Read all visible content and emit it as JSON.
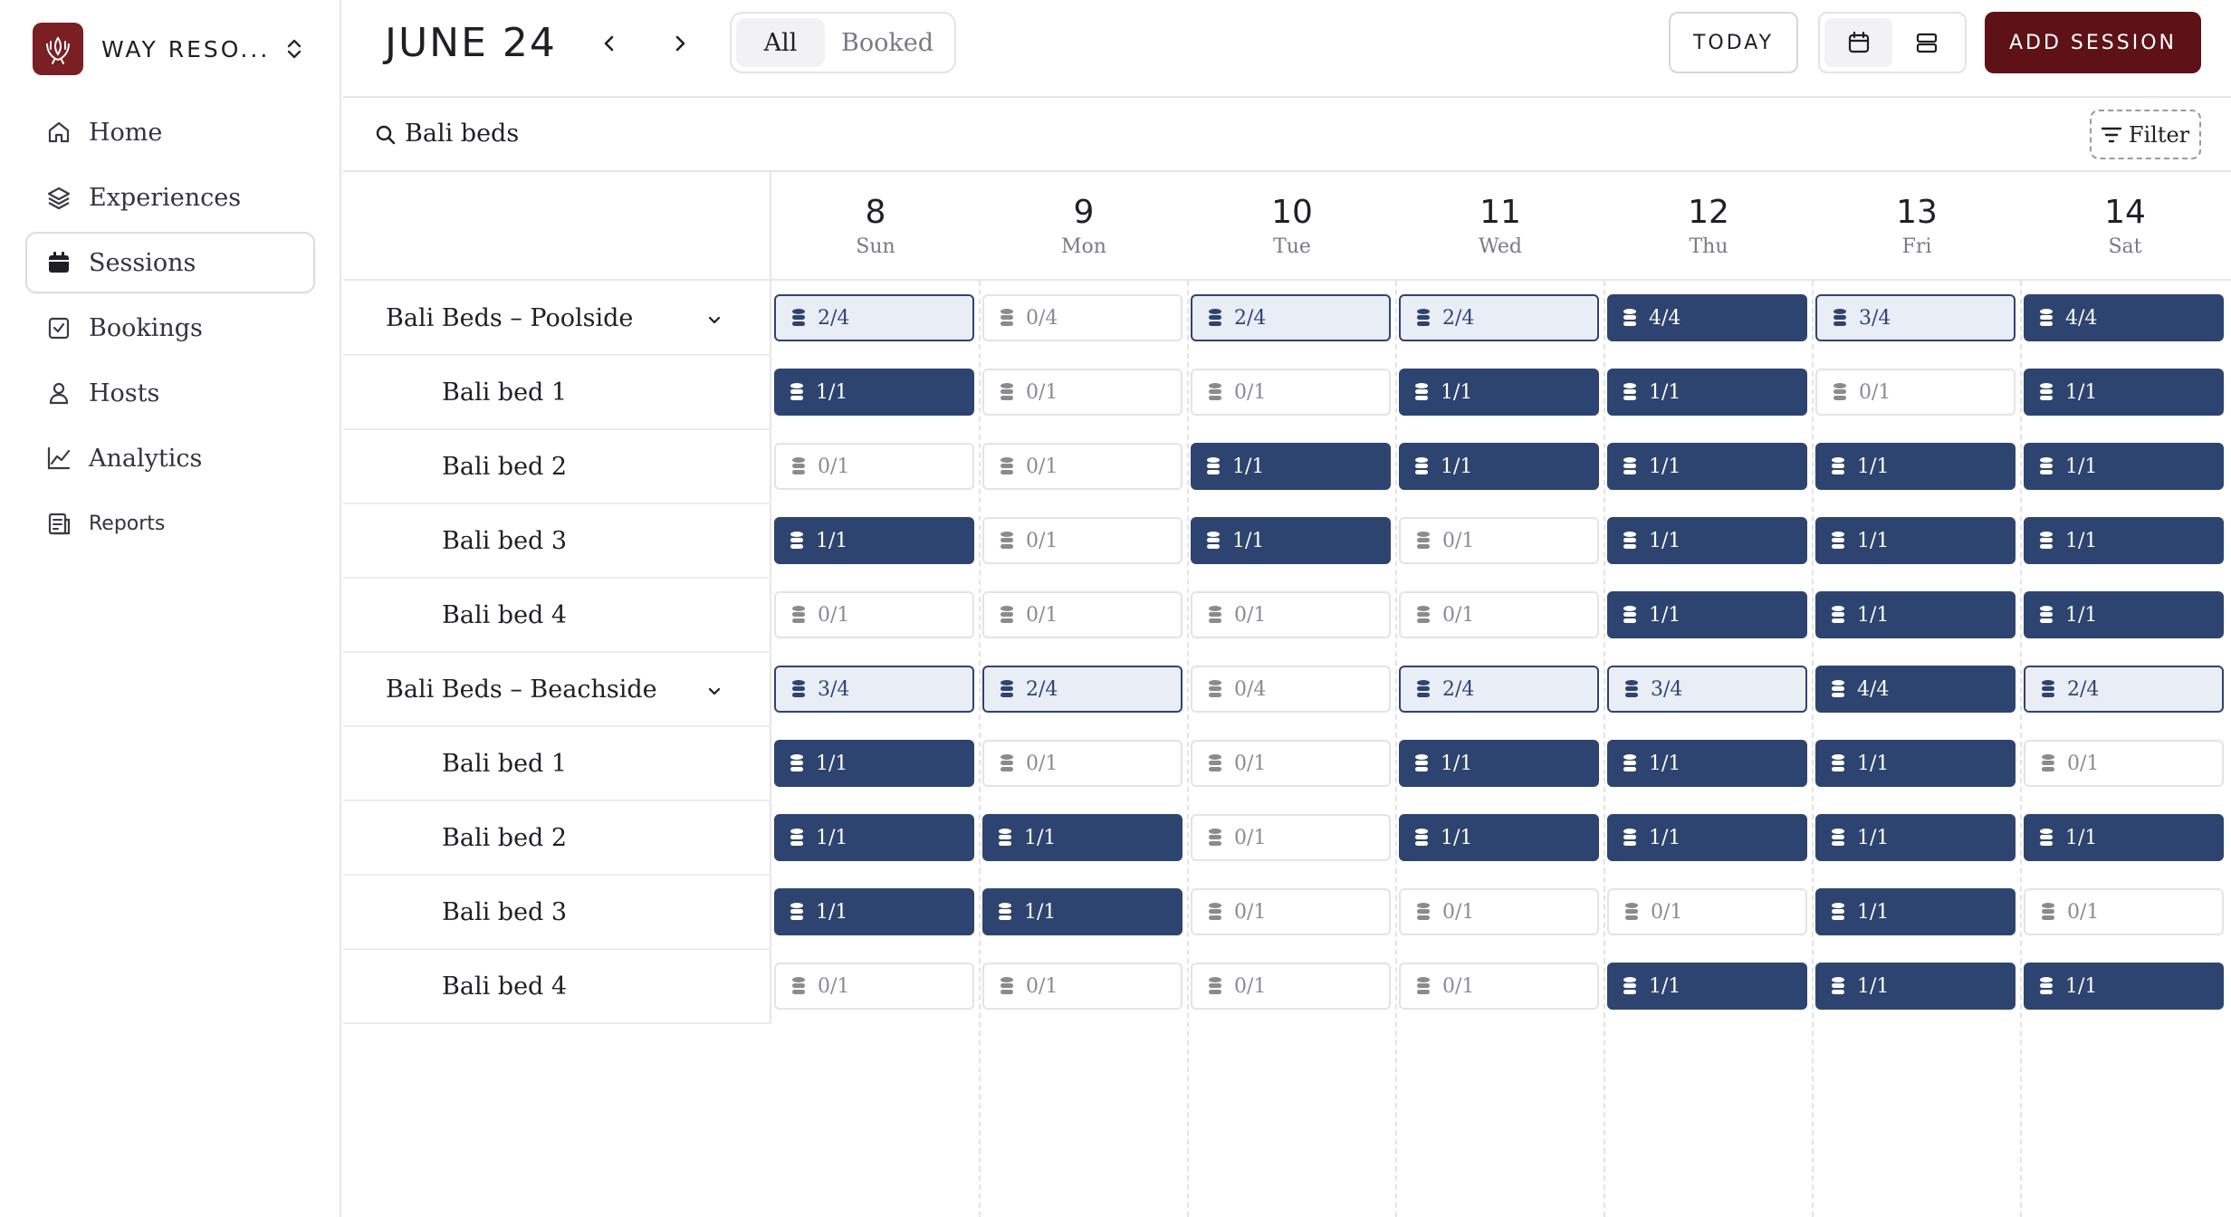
{
  "sidebar": {
    "brand_name": "WAY RESO...",
    "items": [
      {
        "label": "Home",
        "icon": "home-icon",
        "active": false
      },
      {
        "label": "Experiences",
        "icon": "layers-icon",
        "active": false
      },
      {
        "label": "Sessions",
        "icon": "calendar-icon",
        "active": true
      },
      {
        "label": "Bookings",
        "icon": "booking-icon",
        "active": false
      },
      {
        "label": "Hosts",
        "icon": "user-icon",
        "active": false
      },
      {
        "label": "Analytics",
        "icon": "chart-icon",
        "active": false
      },
      {
        "label": "Reports",
        "icon": "report-icon",
        "active": false
      }
    ]
  },
  "header": {
    "month": "JUNE 24",
    "filter_all": "All",
    "filter_booked": "Booked",
    "today": "TODAY",
    "add_session": "ADD SESSION"
  },
  "search": {
    "query": "Bali beds",
    "filter_label": "Filter"
  },
  "days": [
    {
      "num": "8",
      "name": "Sun"
    },
    {
      "num": "9",
      "name": "Mon"
    },
    {
      "num": "10",
      "name": "Tue"
    },
    {
      "num": "11",
      "name": "Wed"
    },
    {
      "num": "12",
      "name": "Thu"
    },
    {
      "num": "13",
      "name": "Fri"
    },
    {
      "num": "14",
      "name": "Sat"
    }
  ],
  "groups": [
    {
      "name": "Bali Beds – Poolside",
      "totals": [
        "2/4",
        "0/4",
        "2/4",
        "2/4",
        "4/4",
        "3/4",
        "4/4"
      ],
      "rows": [
        {
          "name": "Bali bed 1",
          "cells": [
            "1/1",
            "0/1",
            "0/1",
            "1/1",
            "1/1",
            "0/1",
            "1/1"
          ]
        },
        {
          "name": "Bali bed 2",
          "cells": [
            "0/1",
            "0/1",
            "1/1",
            "1/1",
            "1/1",
            "1/1",
            "1/1"
          ]
        },
        {
          "name": "Bali bed 3",
          "cells": [
            "1/1",
            "0/1",
            "1/1",
            "0/1",
            "1/1",
            "1/1",
            "1/1"
          ]
        },
        {
          "name": "Bali bed 4",
          "cells": [
            "0/1",
            "0/1",
            "0/1",
            "0/1",
            "1/1",
            "1/1",
            "1/1"
          ]
        }
      ]
    },
    {
      "name": "Bali Beds – Beachside",
      "totals": [
        "3/4",
        "2/4",
        "0/4",
        "2/4",
        "3/4",
        "4/4",
        "2/4"
      ],
      "rows": [
        {
          "name": "Bali bed 1",
          "cells": [
            "1/1",
            "0/1",
            "0/1",
            "1/1",
            "1/1",
            "1/1",
            "0/1"
          ]
        },
        {
          "name": "Bali bed 2",
          "cells": [
            "1/1",
            "1/1",
            "0/1",
            "1/1",
            "1/1",
            "1/1",
            "1/1"
          ]
        },
        {
          "name": "Bali bed 3",
          "cells": [
            "1/1",
            "1/1",
            "0/1",
            "0/1",
            "0/1",
            "1/1",
            "0/1"
          ]
        },
        {
          "name": "Bali bed 4",
          "cells": [
            "0/1",
            "0/1",
            "0/1",
            "0/1",
            "1/1",
            "1/1",
            "1/1"
          ]
        }
      ]
    }
  ],
  "colors": {
    "brand": "#7a1f24",
    "primary_button": "#5e1217",
    "session_full": "#2e4470",
    "session_partial_bg": "#e9edf6"
  }
}
